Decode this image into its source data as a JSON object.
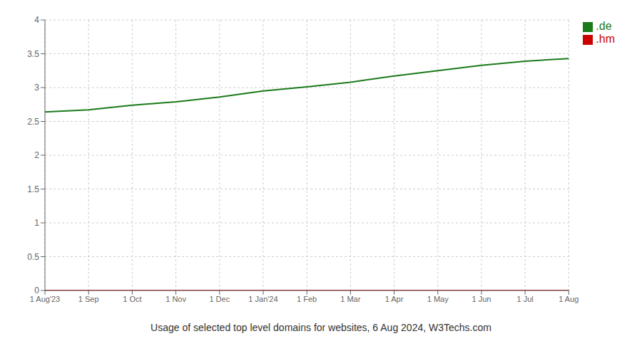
{
  "chart_data": {
    "type": "line",
    "title": "Usage of selected top level domains for websites, 6 Aug 2024, W3Techs.com",
    "categories": [
      "1 Aug'23",
      "1 Sep",
      "1 Oct",
      "1 Nov",
      "1 Dec",
      "1 Jan'24",
      "1 Feb",
      "1 Mar",
      "1 Apr",
      "1 May",
      "1 Jun",
      "1 Jul",
      "1 Aug"
    ],
    "series": [
      {
        "name": ".de",
        "color": "#1a7a1a",
        "values": [
          2.64,
          2.67,
          2.74,
          2.79,
          2.86,
          2.95,
          3.01,
          3.08,
          3.17,
          3.25,
          3.33,
          3.39,
          3.43
        ]
      },
      {
        "name": ".hm",
        "color": "#cc0000",
        "values": [
          0.0,
          0.0,
          0.0,
          0.0,
          0.0,
          0.0,
          0.0,
          0.0,
          0.0,
          0.0,
          0.0,
          0.0,
          0.0
        ]
      }
    ],
    "ylim": [
      0,
      4
    ],
    "yticks": [
      0,
      0.5,
      1,
      1.5,
      2,
      2.5,
      3,
      3.5,
      4
    ],
    "grid": true,
    "legend": "right"
  }
}
